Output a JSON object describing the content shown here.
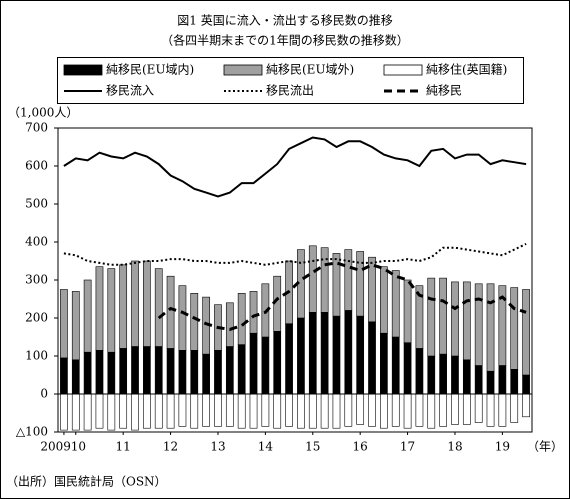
{
  "chart_data": {
    "type": "bar",
    "title": "図1 英国に流入・流出する移民数の推移",
    "subtitle": "（各四半期末までの1年間の移民数の推移数）",
    "y_label": "（1,000人）",
    "x_label": "（年）",
    "source": "（出所）国民統計局（OSN）",
    "categories": [
      "2009",
      "10",
      null,
      null,
      null,
      "11",
      null,
      null,
      null,
      "12",
      null,
      null,
      null,
      "13",
      null,
      null,
      null,
      "14",
      null,
      null,
      null,
      "15",
      null,
      null,
      null,
      "16",
      null,
      null,
      null,
      "17",
      null,
      null,
      null,
      "18",
      null,
      null,
      null,
      "19",
      null,
      null
    ],
    "ylim": [
      -100,
      700
    ],
    "yticks": [
      {
        "value": -100,
        "label": "△100"
      },
      0,
      100,
      200,
      300,
      400,
      500,
      600,
      700
    ],
    "grid": false,
    "series": [
      {
        "name": "純移民(EU域内)",
        "type": "bar",
        "color": "#000000",
        "values": [
          95,
          90,
          110,
          115,
          110,
          120,
          125,
          125,
          125,
          120,
          115,
          115,
          105,
          115,
          125,
          130,
          160,
          150,
          165,
          185,
          200,
          215,
          215,
          205,
          220,
          205,
          190,
          160,
          150,
          135,
          120,
          100,
          105,
          100,
          90,
          75,
          60,
          75,
          65,
          50
        ]
      },
      {
        "name": "純移民(EU域外)",
        "type": "bar",
        "color": "#a0a0a0",
        "values": [
          180,
          180,
          190,
          220,
          220,
          220,
          225,
          225,
          205,
          190,
          170,
          150,
          150,
          120,
          115,
          135,
          110,
          140,
          145,
          165,
          180,
          175,
          170,
          165,
          160,
          170,
          170,
          175,
          175,
          165,
          165,
          205,
          200,
          195,
          205,
          215,
          230,
          210,
          215,
          225
        ]
      },
      {
        "name": "純移住(英国籍)",
        "type": "bar",
        "color": "#ffffff",
        "values": [
          -95,
          -95,
          -95,
          -90,
          -95,
          -90,
          -95,
          -90,
          -90,
          -90,
          -85,
          -90,
          -85,
          -85,
          -85,
          -90,
          -90,
          -85,
          -90,
          -85,
          -90,
          -90,
          -90,
          -90,
          -85,
          -80,
          -85,
          -90,
          -85,
          -90,
          -85,
          -90,
          -85,
          -80,
          -80,
          -75,
          -85,
          -85,
          -75,
          -60
        ]
      },
      {
        "name": "移民流入",
        "type": "line",
        "linestyle": "solid",
        "color": "#000000",
        "values": [
          600,
          620,
          615,
          635,
          625,
          620,
          635,
          625,
          605,
          575,
          560,
          540,
          530,
          520,
          530,
          555,
          555,
          580,
          605,
          645,
          660,
          675,
          670,
          650,
          665,
          665,
          650,
          630,
          620,
          615,
          600,
          640,
          645,
          620,
          630,
          630,
          605,
          615,
          610,
          605
        ]
      },
      {
        "name": "移民流出",
        "type": "line",
        "linestyle": "dotted",
        "color": "#000000",
        "values": [
          370,
          365,
          350,
          345,
          340,
          340,
          345,
          350,
          350,
          355,
          355,
          350,
          350,
          345,
          345,
          350,
          345,
          340,
          345,
          350,
          345,
          350,
          355,
          355,
          350,
          345,
          345,
          350,
          350,
          355,
          350,
          360,
          385,
          385,
          380,
          375,
          370,
          365,
          380,
          395
        ]
      },
      {
        "name": "純移民",
        "type": "line",
        "linestyle": "dashed",
        "color": "#000000",
        "values": [
          null,
          null,
          null,
          null,
          null,
          null,
          null,
          null,
          200,
          225,
          215,
          200,
          185,
          175,
          170,
          180,
          205,
          215,
          250,
          270,
          300,
          320,
          340,
          345,
          335,
          325,
          340,
          330,
          310,
          300,
          260,
          250,
          245,
          225,
          245,
          250,
          240,
          255,
          225,
          215
        ]
      }
    ]
  }
}
